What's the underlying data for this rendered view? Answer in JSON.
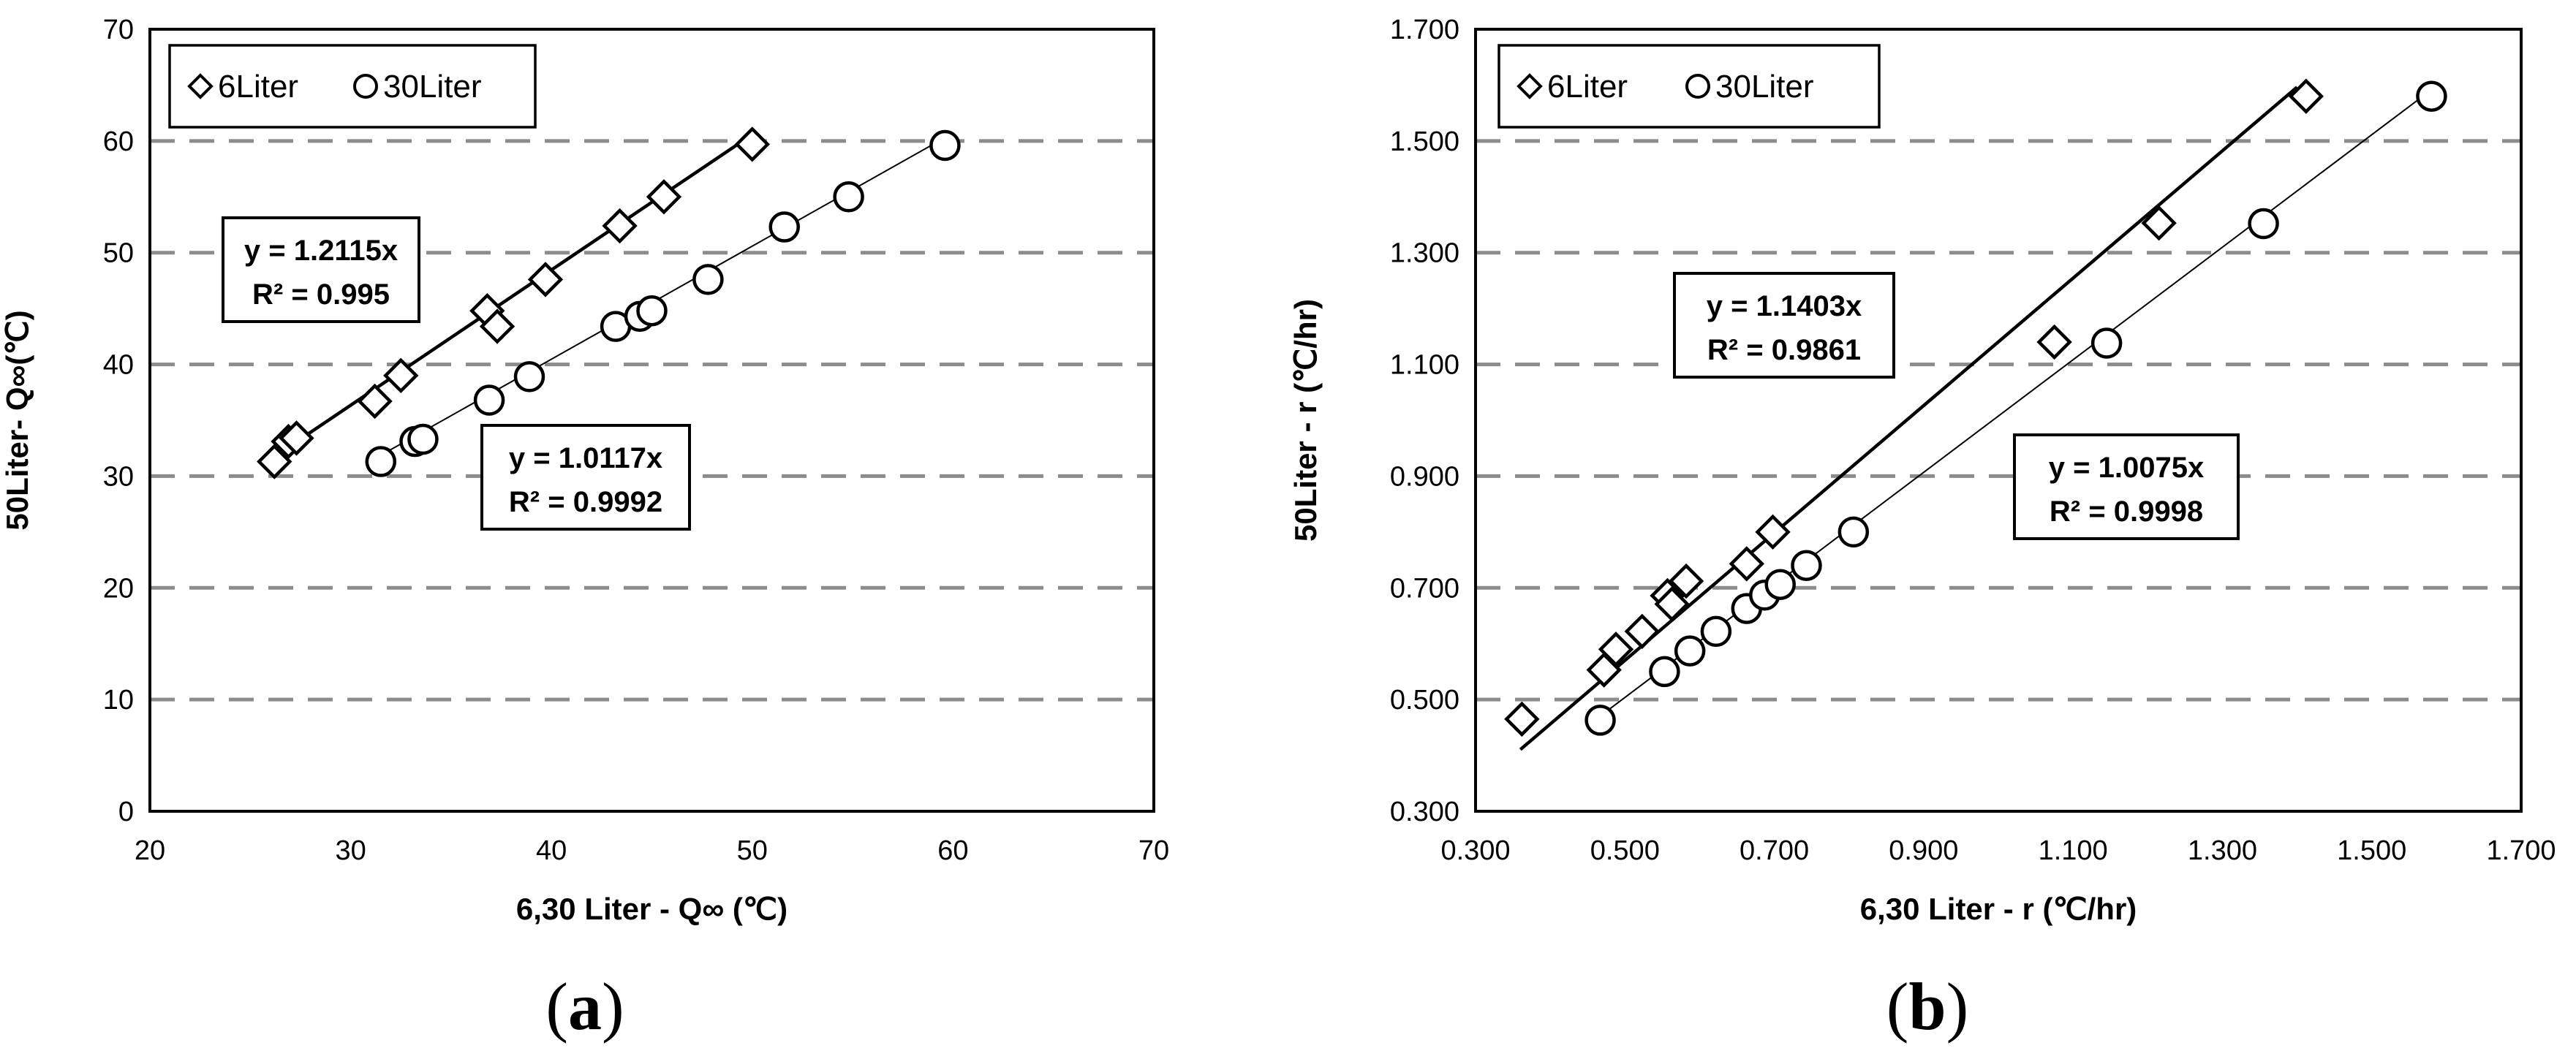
{
  "chart_data": [
    {
      "type": "scatter",
      "panel_label": "(a)",
      "panel_letter": "a",
      "xlabel": "6,30 Liter - Q∞ (℃)",
      "ylabel": "50Liter- Q∞(℃)",
      "xlim": [
        20,
        70
      ],
      "ylim": [
        0,
        70
      ],
      "xticks": [
        "20",
        "30",
        "40",
        "50",
        "60",
        "70"
      ],
      "yticks": [
        "0",
        "10",
        "20",
        "30",
        "40",
        "50",
        "60",
        "70"
      ],
      "grid": "horizontal dashed",
      "legend": "top-left",
      "series": [
        {
          "name": "6Liter",
          "marker": "diamond",
          "points": [
            [
              26.2,
              31.3
            ],
            [
              26.9,
              33.1
            ],
            [
              27.3,
              33.4
            ],
            [
              31.2,
              36.7
            ],
            [
              32.5,
              39.0
            ],
            [
              36.8,
              44.8
            ],
            [
              37.3,
              43.4
            ],
            [
              39.7,
              47.6
            ],
            [
              43.4,
              52.4
            ],
            [
              45.6,
              55.0
            ],
            [
              50.0,
              59.7
            ]
          ],
          "fit": {
            "slope": 1.2115,
            "from": 26.2,
            "to": 49.5
          },
          "equation": "y = 1.2115x",
          "r2": "R² = 0.995"
        },
        {
          "name": "30Liter",
          "marker": "circle",
          "points": [
            [
              31.5,
              31.3
            ],
            [
              33.2,
              33.1
            ],
            [
              33.6,
              33.3
            ],
            [
              36.9,
              36.8
            ],
            [
              38.9,
              38.9
            ],
            [
              43.2,
              43.4
            ],
            [
              44.4,
              44.3
            ],
            [
              45.0,
              44.8
            ],
            [
              47.8,
              47.6
            ],
            [
              51.6,
              52.3
            ],
            [
              54.8,
              55.0
            ],
            [
              59.6,
              59.6
            ]
          ],
          "fit": {
            "slope": 1.0117,
            "from": 31.5,
            "to": 59.2
          },
          "equation": "y = 1.0117x",
          "r2": "R² = 0.9992"
        }
      ]
    },
    {
      "type": "scatter",
      "panel_label": "(b)",
      "panel_letter": "b",
      "xlabel": "6,30 Liter - r (℃/hr)",
      "ylabel": "50Liter - r (℃/hr)",
      "xlim": [
        0.3,
        1.7
      ],
      "ylim": [
        0.3,
        1.7
      ],
      "xticks": [
        "0.300",
        "0.500",
        "0.700",
        "0.900",
        "1.100",
        "1.300",
        "1.500",
        "1.700"
      ],
      "yticks": [
        "0.300",
        "0.500",
        "0.700",
        "0.900",
        "1.100",
        "1.300",
        "1.500",
        "1.700"
      ],
      "grid": "horizontal dashed",
      "legend": "top-left",
      "series": [
        {
          "name": "6Liter",
          "marker": "diamond",
          "points": [
            [
              0.362,
              0.465
            ],
            [
              0.472,
              0.553
            ],
            [
              0.488,
              0.59
            ],
            [
              0.523,
              0.622
            ],
            [
              0.557,
              0.686
            ],
            [
              0.563,
              0.671
            ],
            [
              0.582,
              0.712
            ],
            [
              0.663,
              0.743
            ],
            [
              0.698,
              0.8
            ],
            [
              1.075,
              1.14
            ],
            [
              1.215,
              1.353
            ],
            [
              1.412,
              1.58
            ]
          ],
          "fit": {
            "slope": 1.1403,
            "from": 0.36,
            "to": 1.4
          },
          "equation": "y = 1.1403x",
          "r2": "R² = 0.9861"
        },
        {
          "name": "30Liter",
          "marker": "circle",
          "points": [
            [
              0.467,
              0.463
            ],
            [
              0.553,
              0.55
            ],
            [
              0.587,
              0.587
            ],
            [
              0.622,
              0.622
            ],
            [
              0.663,
              0.663
            ],
            [
              0.687,
              0.687
            ],
            [
              0.708,
              0.706
            ],
            [
              0.743,
              0.74
            ],
            [
              0.806,
              0.8
            ],
            [
              1.145,
              1.138
            ],
            [
              1.355,
              1.352
            ],
            [
              1.58,
              1.58
            ]
          ],
          "fit": {
            "slope": 1.0075,
            "from": 0.46,
            "to": 1.57
          },
          "equation": "y = 1.0075x",
          "r2": "R² = 0.9998"
        }
      ]
    }
  ]
}
